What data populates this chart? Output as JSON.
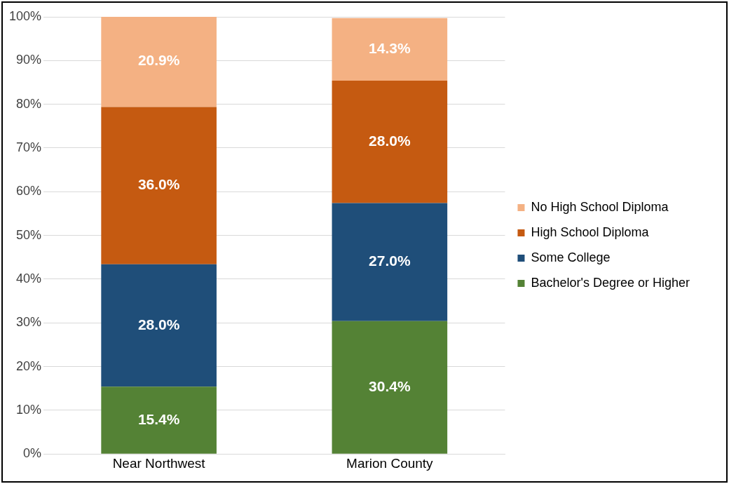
{
  "chart_data": {
    "type": "bar",
    "stacked": true,
    "categories": [
      "Near Northwest",
      "Marion County"
    ],
    "series": [
      {
        "name": "Bachelor's Degree or Higher",
        "color": "#548235",
        "values": [
          15.4,
          30.4
        ],
        "value_labels": [
          "15.4%",
          "30.4%"
        ]
      },
      {
        "name": "Some College",
        "color": "#1f4e79",
        "values": [
          28.0,
          27.0
        ],
        "value_labels": [
          "28.0%",
          "27.0%"
        ]
      },
      {
        "name": "High School Diploma",
        "color": "#c55a11",
        "values": [
          36.0,
          28.0
        ],
        "value_labels": [
          "36.0%",
          "28.0%"
        ]
      },
      {
        "name": "No High School Diploma",
        "color": "#f4b183",
        "values": [
          20.9,
          14.3
        ],
        "value_labels": [
          "20.9%",
          "14.3%"
        ]
      }
    ],
    "ylim": [
      0,
      100
    ],
    "yticks": [
      {
        "value": 0,
        "label": "0%"
      },
      {
        "value": 10,
        "label": "10%"
      },
      {
        "value": 20,
        "label": "20%"
      },
      {
        "value": 30,
        "label": "30%"
      },
      {
        "value": 40,
        "label": "40%"
      },
      {
        "value": 50,
        "label": "50%"
      },
      {
        "value": 60,
        "label": "60%"
      },
      {
        "value": 70,
        "label": "70%"
      },
      {
        "value": 80,
        "label": "80%"
      },
      {
        "value": 90,
        "label": "90%"
      },
      {
        "value": 100,
        "label": "100%"
      }
    ],
    "grid": "y",
    "legend": "right"
  }
}
